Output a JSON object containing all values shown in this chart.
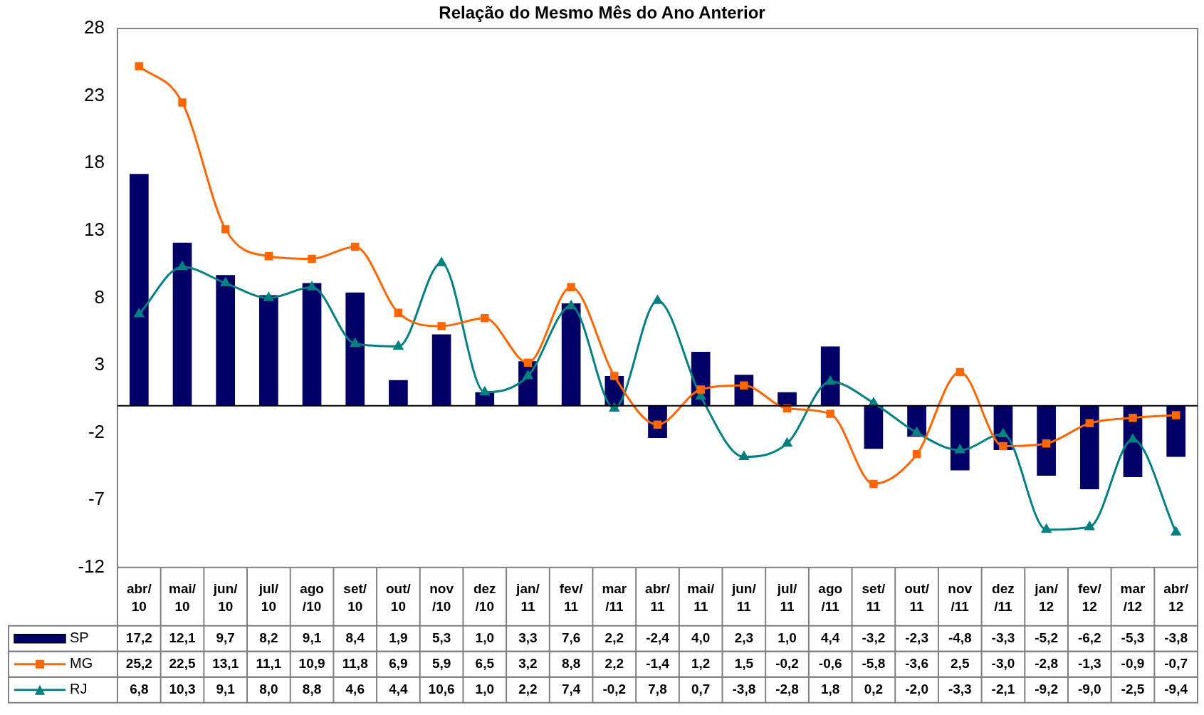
{
  "chart_data": {
    "type": "bar",
    "title": "Relação do Mesmo Mês do Ano Anterior",
    "categories": [
      "abr/ 10",
      "mai/ 10",
      "jun/ 10",
      "jul/ 10",
      "ago /10",
      "set/ 10",
      "out/ 10",
      "nov /10",
      "dez /10",
      "jan/ 11",
      "fev/ 11",
      "mar /11",
      "abr/ 11",
      "mai/ 11",
      "jun/ 11",
      "jul/ 11",
      "ago /11",
      "set/ 11",
      "out/ 11",
      "nov /11",
      "dez /11",
      "jan/ 12",
      "fev/ 12",
      "mar /12",
      "abr/ 12"
    ],
    "series": [
      {
        "name": "SP",
        "color": "#000066",
        "values": [
          17.2,
          12.1,
          9.7,
          8.2,
          9.1,
          8.4,
          1.9,
          5.3,
          1.0,
          3.3,
          7.6,
          2.2,
          -2.4,
          4.0,
          2.3,
          1.0,
          4.4,
          -3.2,
          -2.3,
          -4.8,
          -3.3,
          -5.2,
          -6.2,
          -5.3,
          -3.8
        ],
        "value_labels": [
          "17,2",
          "12,1",
          "9,7",
          "8,2",
          "9,1",
          "8,4",
          "1,9",
          "5,3",
          "1,0",
          "3,3",
          "7,6",
          "2,2",
          "-2,4",
          "4,0",
          "2,3",
          "1,0",
          "4,4",
          "-3,2",
          "-2,3",
          "-4,8",
          "-3,3",
          "-5,2",
          "-6,2",
          "-5,3",
          "-3,8"
        ]
      },
      {
        "name": "MG",
        "type": "line",
        "color": "#ff6600",
        "marker": "square",
        "values": [
          25.2,
          22.5,
          13.1,
          11.1,
          10.9,
          11.8,
          6.9,
          5.9,
          6.5,
          3.2,
          8.8,
          2.2,
          -1.4,
          1.2,
          1.5,
          -0.2,
          -0.6,
          -5.8,
          -3.6,
          2.5,
          -3.0,
          -2.8,
          -1.3,
          -0.9,
          -0.7
        ],
        "value_labels": [
          "25,2",
          "22,5",
          "13,1",
          "11,1",
          "10,9",
          "11,8",
          "6,9",
          "5,9",
          "6,5",
          "3,2",
          "8,8",
          "2,2",
          "-1,4",
          "1,2",
          "1,5",
          "-0,2",
          "-0,6",
          "-5,8",
          "-3,6",
          "2,5",
          "-3,0",
          "-2,8",
          "-1,3",
          "-0,9",
          "-0,7"
        ]
      },
      {
        "name": "RJ",
        "type": "line",
        "color": "#008080",
        "marker": "triangle",
        "values": [
          6.8,
          10.3,
          9.1,
          8.0,
          8.8,
          4.6,
          4.4,
          10.6,
          1.0,
          2.2,
          7.4,
          -0.2,
          7.8,
          0.7,
          -3.8,
          -2.8,
          1.8,
          0.2,
          -2.0,
          -3.3,
          -2.1,
          -9.2,
          -9.0,
          -2.5,
          -9.4
        ],
        "value_labels": [
          "6,8",
          "10,3",
          "9,1",
          "8,0",
          "8,8",
          "4,6",
          "4,4",
          "10,6",
          "1,0",
          "2,2",
          "7,4",
          "-0,2",
          "7,8",
          "0,7",
          "-3,8",
          "-2,8",
          "1,8",
          "0,2",
          "-2,0",
          "-3,3",
          "-2,1",
          "-9,2",
          "-9,0",
          "-2,5",
          "-9,4"
        ]
      }
    ],
    "ylim": [
      -12,
      28
    ],
    "yticks": [
      -12,
      -7,
      -2,
      3,
      8,
      13,
      18,
      23,
      28
    ],
    "grid": false,
    "legend": "bottom left"
  }
}
